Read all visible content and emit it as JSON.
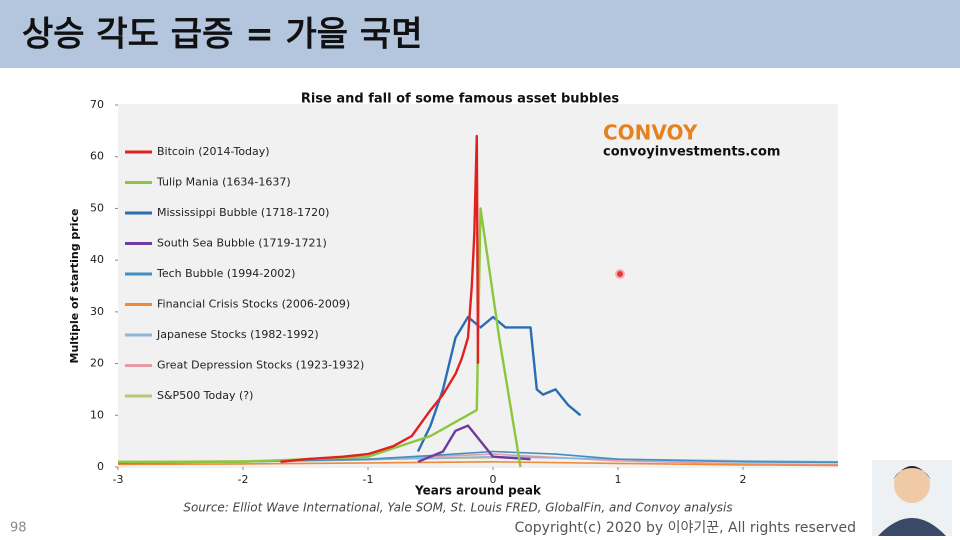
{
  "slide": {
    "title": "상승 각도 급증 = 가을 국면",
    "page_number": "98",
    "copyright": "Copyright(c) 2020 by 이야기꾼, All rights reserved",
    "source": "Source: Elliot Wave International, Yale SOM, St. Louis FRED, GlobalFin, and Convoy analysis",
    "logo": "CONVOY",
    "logo_url": "convoyinvestments.com"
  },
  "chart_data": {
    "type": "line",
    "title": "Rise and fall of some famous asset bubbles",
    "x_label": "Years around peak",
    "y_label": "Multiple of starting price",
    "xlim": [
      -3,
      2.76
    ],
    "ylim": [
      0,
      70
    ],
    "xticks": [
      -3,
      -2,
      -1,
      0,
      1,
      2
    ],
    "yticks": [
      0,
      10,
      20,
      30,
      40,
      50,
      60,
      70
    ],
    "series": [
      {
        "name": "Bitcoin (2014-Today)",
        "color": "#e0211f",
        "x": [
          -1.7,
          -1.5,
          -1.2,
          -1.0,
          -0.8,
          -0.65,
          -0.5,
          -0.4,
          -0.3,
          -0.25,
          -0.2,
          -0.17,
          -0.15,
          -0.13,
          -0.12
        ],
        "values": [
          1,
          1.5,
          2,
          2.5,
          4,
          6,
          11,
          14,
          18,
          21,
          25,
          35,
          45,
          64,
          20
        ]
      },
      {
        "name": "Tulip Mania (1634-1637)",
        "color": "#8cc63e",
        "x": [
          -3,
          -2,
          -1,
          -0.5,
          -0.13,
          -0.1,
          0.05,
          0.22
        ],
        "values": [
          1,
          1,
          2,
          6,
          11,
          50,
          25,
          0
        ]
      },
      {
        "name": "Mississippi Bubble (1718-1720)",
        "color": "#2a6db5",
        "x": [
          -0.6,
          -0.5,
          -0.4,
          -0.3,
          -0.2,
          -0.1,
          0,
          0.1,
          0.3,
          0.35,
          0.4,
          0.5,
          0.6,
          0.7
        ],
        "values": [
          3,
          8,
          15,
          25,
          29,
          27,
          29,
          27,
          27,
          15,
          14,
          15,
          12,
          10
        ]
      },
      {
        "name": "South Sea Bubble (1719-1721)",
        "color": "#6f3ba0",
        "x": [
          -0.6,
          -0.4,
          -0.3,
          -0.2,
          -0.1,
          0,
          0.3
        ],
        "values": [
          1,
          3,
          7,
          8,
          5,
          2,
          1.5
        ]
      },
      {
        "name": "Tech Bubble (1994-2002)",
        "color": "#3f8fc0",
        "x": [
          -3,
          -2,
          -1,
          -0.5,
          0,
          0.5,
          1,
          2,
          2.76
        ],
        "values": [
          0.8,
          1,
          1.5,
          2.2,
          3,
          2.5,
          1.5,
          1,
          0.9
        ]
      },
      {
        "name": "Financial Crisis Stocks (2006-2009)",
        "color": "#ef8a3c",
        "x": [
          -3,
          -2,
          -1,
          0,
          1,
          2,
          2.76
        ],
        "values": [
          0.5,
          0.6,
          0.8,
          1,
          0.7,
          0.4,
          0.3
        ]
      },
      {
        "name": "Japanese Stocks (1982-1992)",
        "color": "#8fb3d9",
        "x": [
          -3,
          -2,
          -1,
          0,
          1,
          2,
          2.76
        ],
        "values": [
          0.8,
          1,
          1.4,
          2,
          1.5,
          1.2,
          1
        ]
      },
      {
        "name": "Great Depression Stocks (1923-1932)",
        "color": "#e59aa6",
        "x": [
          -3,
          -2,
          -1,
          0,
          1,
          2,
          2.76
        ],
        "values": [
          0.7,
          1,
          1.5,
          2.5,
          1.2,
          0.6,
          0.5
        ]
      },
      {
        "name": "S&P500 Today (?)",
        "color": "#b7c77a",
        "x": [
          -3,
          -2,
          -1,
          0
        ],
        "values": [
          1,
          1.2,
          1.5,
          1.8
        ]
      }
    ]
  }
}
